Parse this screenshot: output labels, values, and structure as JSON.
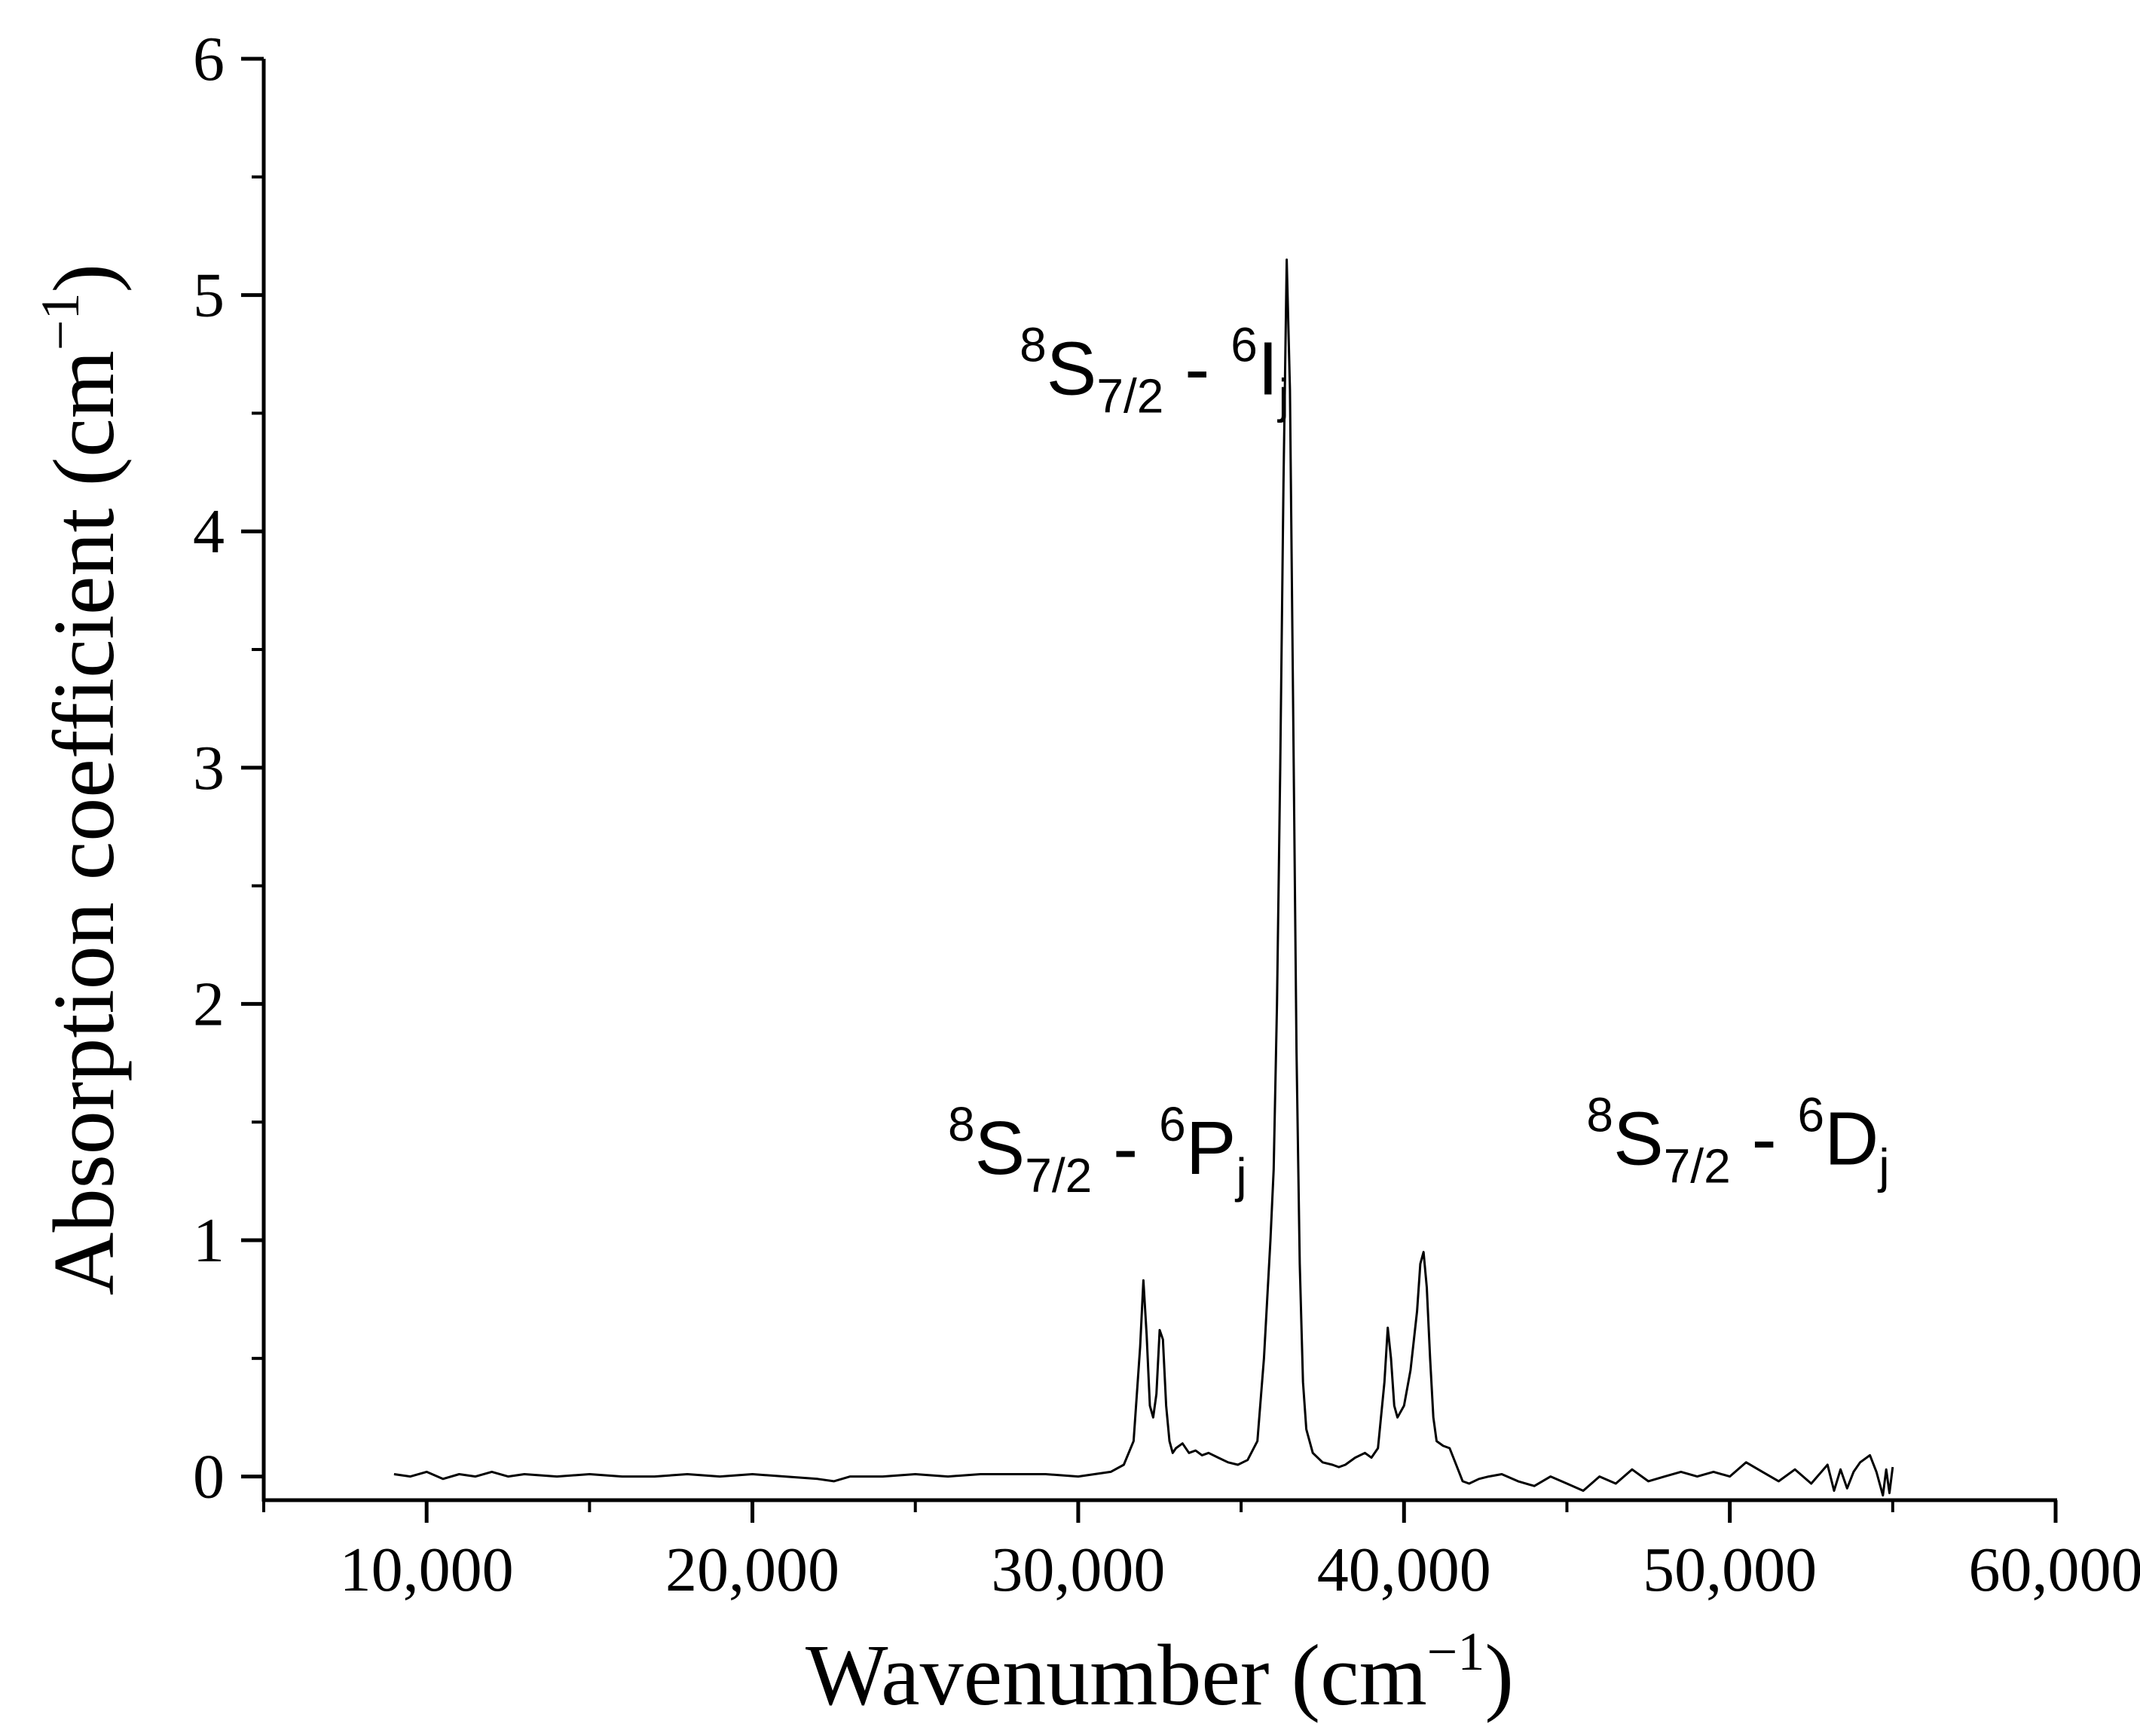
{
  "chart_data": {
    "type": "line",
    "title": "",
    "xlabel": "Wavenumber (cm",
    "xlabel_sup": "−1",
    "xlabel_end": ")",
    "ylabel": "Absorption coefficient (cm",
    "ylabel_sup": "−1",
    "ylabel_end": ")",
    "xlim": [
      5000,
      60000
    ],
    "ylim": [
      -0.1,
      6
    ],
    "x_ticks": [
      10000,
      20000,
      30000,
      40000,
      50000,
      60000
    ],
    "x_tick_labels": [
      "10,000",
      "20,000",
      "30,000",
      "40,000",
      "50,000",
      "60,000"
    ],
    "y_ticks": [
      0,
      1,
      2,
      3,
      4,
      5,
      6
    ],
    "y_tick_labels": [
      "0",
      "1",
      "2",
      "3",
      "4",
      "5",
      "6"
    ],
    "line_color": "#000000",
    "grid": false,
    "series": [
      {
        "x": [
          9000,
          9500,
          10000,
          10500,
          11000,
          11500,
          12000,
          12500,
          13000,
          14000,
          15000,
          16000,
          17000,
          18000,
          19000,
          20000,
          21000,
          22000,
          22500,
          23000,
          24000,
          25000,
          26000,
          27000,
          28000,
          29000,
          30000,
          30500,
          31000,
          31400,
          31700,
          31900,
          32000,
          32100,
          32200,
          32300,
          32400,
          32500,
          32600,
          32700,
          32800,
          32900,
          33000,
          33200,
          33400,
          33600,
          33800,
          34000,
          34300,
          34600,
          34900,
          35200,
          35500,
          35700,
          35900,
          36000,
          36100,
          36200,
          36300,
          36400,
          36500,
          36600,
          36700,
          36800,
          36900,
          37000,
          37200,
          37500,
          37800,
          38000,
          38200,
          38500,
          38800,
          39000,
          39200,
          39400,
          39500,
          39600,
          39700,
          39800,
          40000,
          40200,
          40400,
          40500,
          40600,
          40700,
          40800,
          40900,
          41000,
          41200,
          41400,
          41600,
          41800,
          42000,
          42300,
          42600,
          43000,
          43500,
          44000,
          44500,
          45000,
          45500,
          46000,
          46500,
          47000,
          47500,
          48000,
          48500,
          49000,
          49500,
          50000,
          50500,
          51000,
          51500,
          52000,
          52500,
          53000,
          53200,
          53400,
          53600,
          53800,
          54000,
          54300,
          54500,
          54700,
          54800,
          54900,
          55000
        ],
        "y": [
          0.01,
          0.0,
          0.02,
          -0.01,
          0.01,
          0.0,
          0.02,
          0.0,
          0.01,
          0.0,
          0.01,
          0.0,
          0.0,
          0.01,
          0.0,
          0.01,
          0.0,
          -0.01,
          -0.02,
          0.0,
          0.0,
          0.01,
          0.0,
          0.01,
          0.01,
          0.01,
          0.0,
          0.01,
          0.02,
          0.05,
          0.15,
          0.55,
          0.83,
          0.6,
          0.3,
          0.25,
          0.35,
          0.62,
          0.58,
          0.3,
          0.15,
          0.1,
          0.12,
          0.14,
          0.1,
          0.11,
          0.09,
          0.1,
          0.08,
          0.06,
          0.05,
          0.07,
          0.15,
          0.5,
          1.0,
          1.3,
          2.0,
          3.0,
          4.2,
          5.15,
          4.6,
          3.2,
          1.8,
          0.9,
          0.4,
          0.2,
          0.1,
          0.06,
          0.05,
          0.04,
          0.05,
          0.08,
          0.1,
          0.08,
          0.12,
          0.4,
          0.63,
          0.5,
          0.3,
          0.25,
          0.3,
          0.45,
          0.7,
          0.9,
          0.95,
          0.8,
          0.5,
          0.25,
          0.15,
          0.13,
          0.12,
          0.05,
          -0.02,
          -0.03,
          -0.01,
          0.0,
          0.01,
          -0.02,
          -0.04,
          0.0,
          -0.03,
          -0.06,
          0.0,
          -0.03,
          0.03,
          -0.02,
          0.0,
          0.02,
          0.0,
          0.02,
          0.0,
          0.06,
          0.02,
          -0.02,
          0.03,
          -0.03,
          0.05,
          -0.06,
          0.03,
          -0.05,
          0.02,
          0.06,
          0.09,
          0.02,
          -0.08,
          0.03,
          -0.07,
          0.04
        ]
      }
    ],
    "annotations": [
      {
        "x": 26000,
        "y": 1.28,
        "base": "8",
        "S": "S",
        "sub1": "7/2",
        "mid": " - ",
        "base2": "6",
        "L": "P",
        "sub2": "j"
      },
      {
        "x": 28200,
        "y": 4.58,
        "base": "8",
        "S": "S",
        "sub1": "7/2",
        "mid": " - ",
        "base2": "6",
        "L": "I",
        "sub2": "j"
      },
      {
        "x": 45600,
        "y": 1.32,
        "base": "8",
        "S": "S",
        "sub1": "7/2",
        "mid": " - ",
        "base2": "6",
        "L": "D",
        "sub2": "j"
      }
    ]
  }
}
